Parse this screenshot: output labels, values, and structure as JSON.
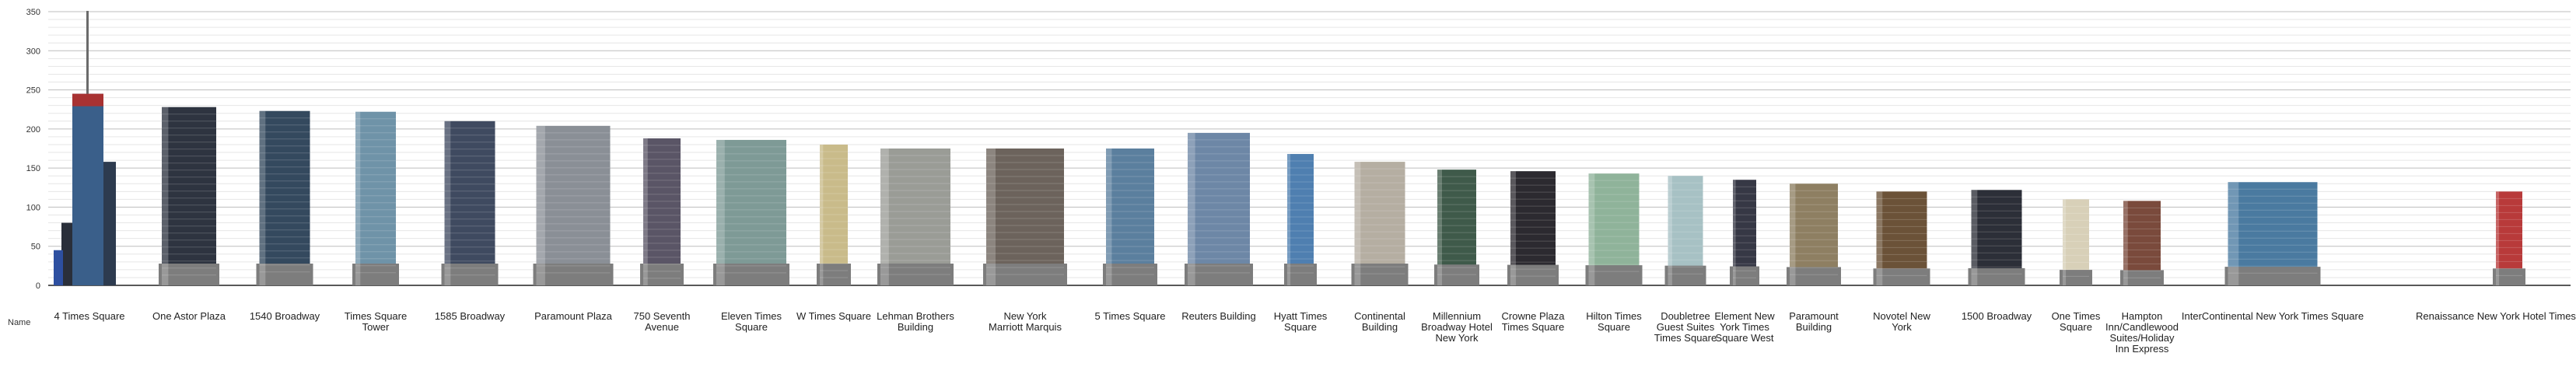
{
  "chart_data": {
    "type": "bar",
    "title": "",
    "xlabel": "",
    "ylabel": "",
    "ylim": [
      0,
      350
    ],
    "yticks": [
      0,
      50,
      100,
      150,
      200,
      250,
      300,
      350
    ],
    "grid": true,
    "row_header": "Name",
    "categories": [
      "4 Times Square",
      "One Astor Plaza",
      "1540 Broadway",
      "Times Square Tower",
      "1585 Broadway",
      "Paramount Plaza",
      "750 Seventh Avenue",
      "Eleven Times Square",
      "W Times Square",
      "Lehman Brothers Building",
      "New York Marriott Marquis",
      "5 Times Square",
      "Reuters Building",
      "Hyatt Times Square",
      "Continental Building",
      "Millennium Broadway Hotel New York",
      "Crowne Plaza Times Square",
      "Hilton Times Square",
      "Doubletree Guest Suites Times Square",
      "Element New York Times Square West",
      "Paramount Building",
      "Novotel New York",
      "1500 Broadway",
      "One Times Square",
      "Hampton Inn/Candlewood Suites/Holiday Inn Express",
      "InterContinental New York Times Square",
      "Renaissance New York Hotel Times Square"
    ],
    "values": [
      351,
      228,
      223,
      222,
      210,
      204,
      188,
      186,
      180,
      175,
      175,
      175,
      195,
      168,
      158,
      148,
      146,
      143,
      140,
      135,
      130,
      120,
      122,
      110,
      108,
      132,
      120
    ],
    "colors": {
      "4 Times Square": "#3a5f8a",
      "One Astor Plaza": "#2e3440",
      "1540 Broadway": "#34495e",
      "Times Square Tower": "#6f93a8",
      "1585 Broadway": "#3f4a60",
      "Paramount Plaza": "#8a8f96",
      "750 Seventh Avenue": "#5a5566",
      "Eleven Times Square": "#7e9a96",
      "W Times Square": "#c9bb8a",
      "Lehman Brothers Building": "#9a9c96",
      "New York Marriott Marquis": "#6c635c",
      "5 Times Square": "#5b7f9e",
      "Reuters Building": "#6d87a6",
      "Hyatt Times Square": "#4f7fb0",
      "Continental Building": "#b5aea2",
      "Millennium Broadway Hotel New York": "#3f5a4a",
      "Crowne Plaza Times Square": "#2c2a30",
      "Hilton Times Square": "#8fb39a",
      "Doubletree Guest Suites Times Square": "#a7c1c4",
      "Element New York Times Square West": "#363845",
      "Paramount Building": "#8e7f62",
      "Novotel New York": "#6b5238",
      "1500 Broadway": "#2c2f38",
      "One Times Square": "#d8d0b8",
      "Hampton Inn/Candlewood Suites/Holiday Inn Express": "#7a4a3c",
      "InterContinental New York Times Square": "#4a7aa0",
      "Renaissance New York Hotel Times Square": "#b83a3a"
    }
  }
}
